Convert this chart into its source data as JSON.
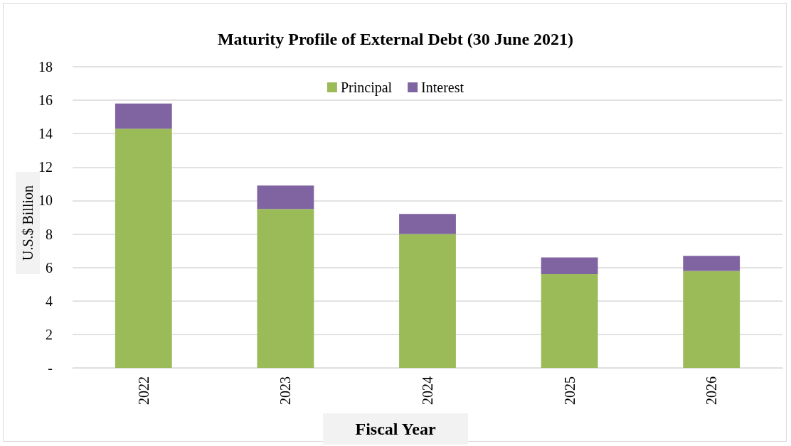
{
  "chart_data": {
    "type": "bar",
    "title": "Maturity Profile of External Debt (30 June 2021)",
    "xlabel": "Fiscal Year",
    "ylabel": "U.S.$ Billion",
    "categories": [
      "2022",
      "2023",
      "2024",
      "2025",
      "2026"
    ],
    "series": [
      {
        "name": "Principal",
        "color": "#9bbb59",
        "values": [
          14.3,
          9.5,
          8.0,
          5.6,
          5.8
        ]
      },
      {
        "name": "Interest",
        "color": "#8064a2",
        "values": [
          1.5,
          1.4,
          1.2,
          1.0,
          0.9
        ]
      }
    ],
    "stacked": true,
    "ylim": [
      0,
      18
    ],
    "yticks": [
      {
        "value": 0,
        "label": "-"
      },
      2,
      4,
      6,
      8,
      10,
      12,
      14,
      16,
      18
    ],
    "grid": "y",
    "legend": "top"
  }
}
